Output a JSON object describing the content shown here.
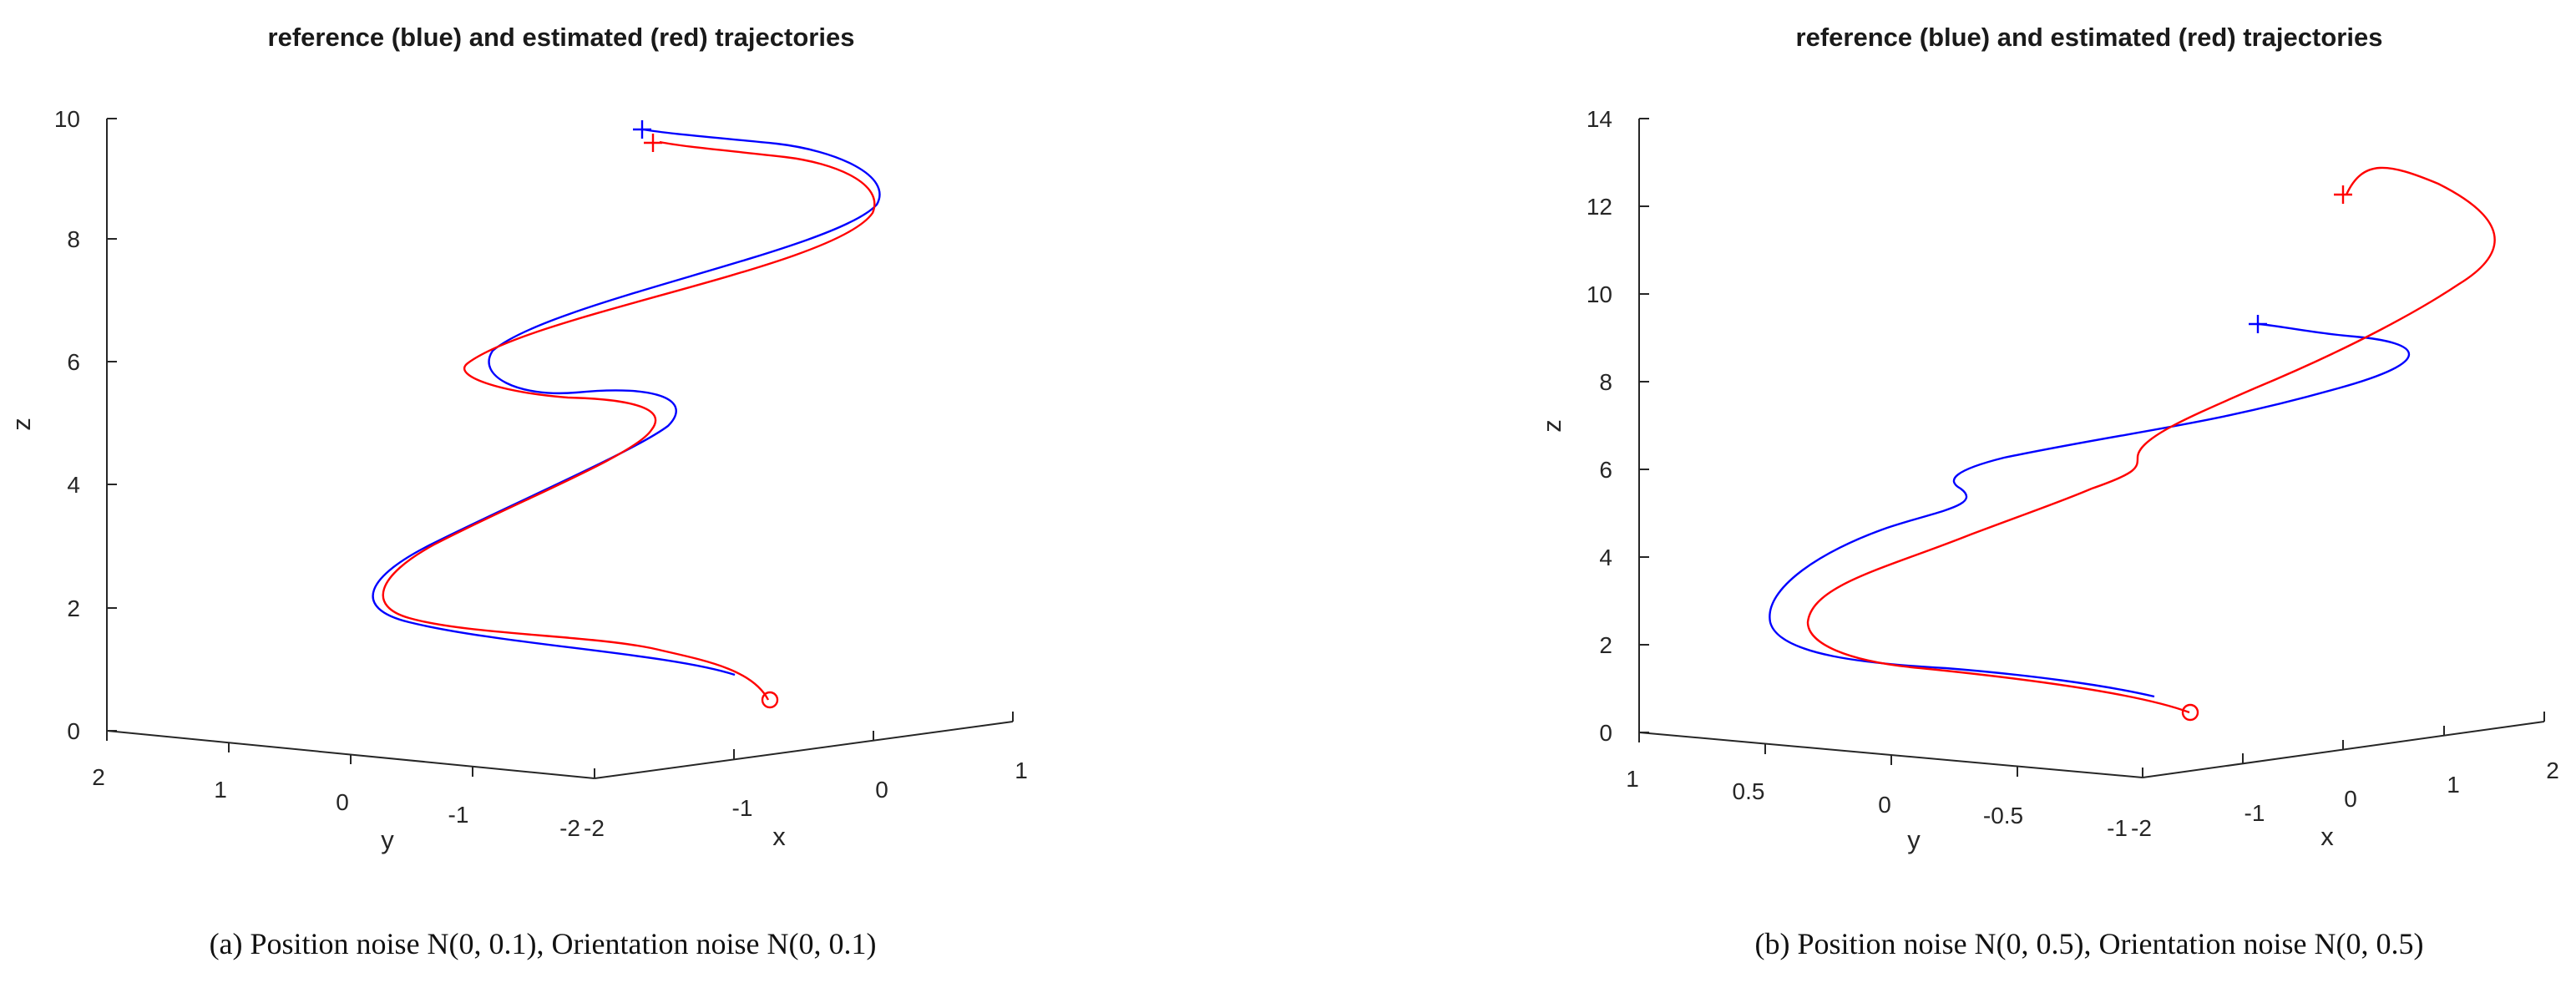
{
  "chart_data": [
    {
      "type": "line",
      "title": "reference (blue) and estimated (red) trajectories",
      "caption": "(a) Position noise N(0, 0.1), Orientation noise N(0, 0.1)",
      "xlabel": "x",
      "ylabel": "y",
      "zlabel": "z",
      "xticks": [
        "-2",
        "-1",
        "0",
        "1"
      ],
      "yticks": [
        "2",
        "1",
        "0",
        "-1",
        "-2"
      ],
      "zticks": [
        "0",
        "2",
        "4",
        "6",
        "8",
        "10"
      ],
      "zlim": [
        0,
        10
      ],
      "colors": {
        "reference": "#0000ff",
        "estimated": "#ff0000"
      },
      "series": [
        {
          "name": "reference",
          "z": [
            0.8,
            1.3,
            1.7,
            2.3,
            3.3,
            4.3,
            5.0,
            5.4,
            6.0,
            6.6,
            7.5,
            8.3,
            8.8,
            9.3,
            9.7
          ]
        },
        {
          "name": "estimated",
          "z": [
            0.5,
            0.8,
            1.3,
            1.7,
            2.3,
            3.3,
            4.2,
            4.9,
            5.4,
            5.9,
            6.5,
            7.4,
            8.2,
            8.7,
            9.2,
            9.5
          ]
        }
      ]
    },
    {
      "type": "line",
      "title": "reference (blue) and estimated (red) trajectories",
      "caption": "(b) Position noise N(0, 0.5), Orientation noise N(0, 0.5)",
      "xlabel": "x",
      "ylabel": "y",
      "zlabel": "z",
      "xticks": [
        "-2",
        "-1",
        "0",
        "1",
        "2"
      ],
      "yticks": [
        "1",
        "0.5",
        "0",
        "-0.5",
        "-1"
      ],
      "zticks": [
        "0",
        "2",
        "4",
        "6",
        "8",
        "10",
        "12",
        "14"
      ],
      "zlim": [
        0,
        14
      ],
      "colors": {
        "reference": "#0000ff",
        "estimated": "#ff0000"
      },
      "series": [
        {
          "name": "reference",
          "z": [
            0.8,
            1.2,
            1.7,
            2.5,
            3.4,
            4.3,
            5.1,
            5.6,
            6.3,
            7.0,
            7.8,
            8.6,
            9.0,
            9.3
          ]
        },
        {
          "name": "estimated",
          "z": [
            0.5,
            0.8,
            1.3,
            1.7,
            2.6,
            3.5,
            4.4,
            5.1,
            5.8,
            6.5,
            7.5,
            8.8,
            10.0,
            10.7,
            11.6,
            12.3
          ]
        }
      ]
    }
  ]
}
